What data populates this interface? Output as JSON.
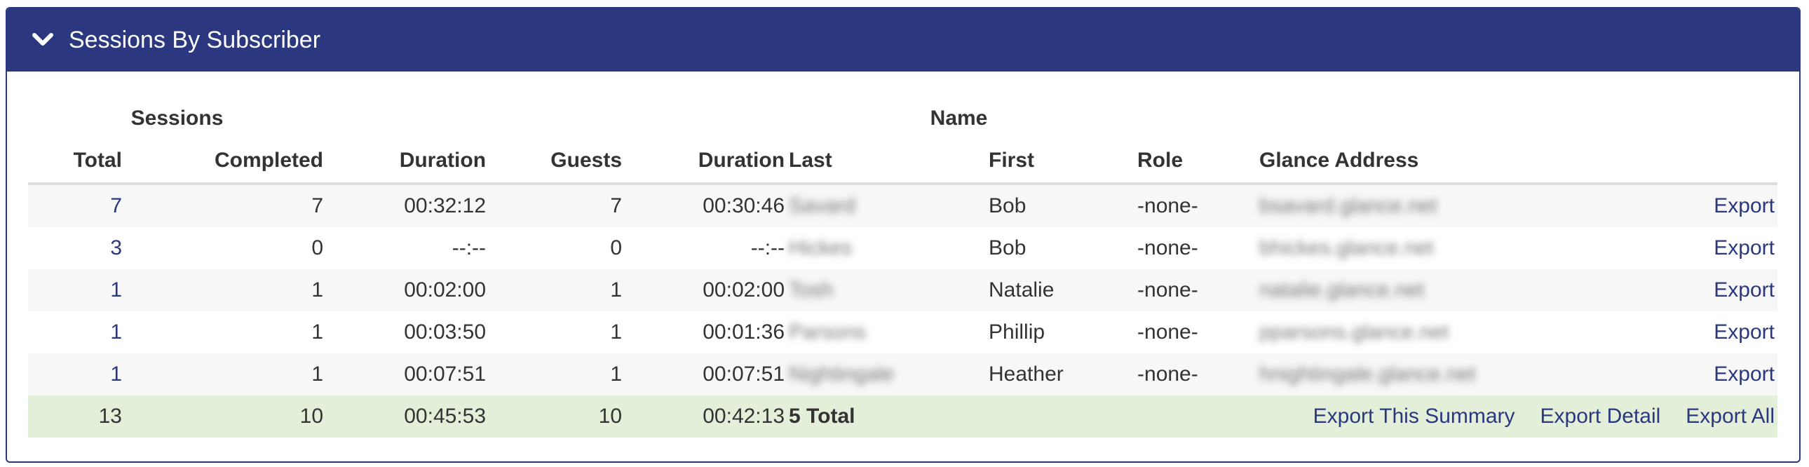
{
  "panel": {
    "title": "Sessions By Subscriber",
    "icon": "chevron-down-icon",
    "header_color": "#2b3880",
    "link_color": "#2b3880",
    "total_row_color": "#e3efd9"
  },
  "table": {
    "group_headers": {
      "sessions": "Sessions",
      "name": "Name"
    },
    "columns": [
      "Total",
      "Completed",
      "Duration",
      "Guests",
      "Duration",
      "Last",
      "First",
      "Role",
      "Glance Address"
    ],
    "rows": [
      {
        "total": "7",
        "completed": "7",
        "duration": "00:32:12",
        "guests": "7",
        "guest_duration": "00:30:46",
        "last": "Savard",
        "first": "Bob",
        "role": "-none-",
        "address": "bsavard.glance.net",
        "export": "Export"
      },
      {
        "total": "3",
        "completed": "0",
        "duration": "--:--",
        "guests": "0",
        "guest_duration": "--:--",
        "last": "Hickes",
        "first": "Bob",
        "role": "-none-",
        "address": "bhickes.glance.net",
        "export": "Export"
      },
      {
        "total": "1",
        "completed": "1",
        "duration": "00:02:00",
        "guests": "1",
        "guest_duration": "00:02:00",
        "last": "Tosh",
        "first": "Natalie",
        "role": "-none-",
        "address": "natalie.glance.net",
        "export": "Export"
      },
      {
        "total": "1",
        "completed": "1",
        "duration": "00:03:50",
        "guests": "1",
        "guest_duration": "00:01:36",
        "last": "Parsons",
        "first": "Phillip",
        "role": "-none-",
        "address": "pparsons.glance.net",
        "export": "Export"
      },
      {
        "total": "1",
        "completed": "1",
        "duration": "00:07:51",
        "guests": "1",
        "guest_duration": "00:07:51",
        "last": "Nightingale",
        "first": "Heather",
        "role": "-none-",
        "address": "hnightingale.glance.net",
        "export": "Export"
      }
    ],
    "totals": {
      "total": "13",
      "completed": "10",
      "duration": "00:45:53",
      "guests": "10",
      "guest_duration": "00:42:13",
      "count_label": "5 Total",
      "export_summary": "Export This Summary",
      "export_detail": "Export Detail",
      "export_all": "Export All"
    }
  }
}
